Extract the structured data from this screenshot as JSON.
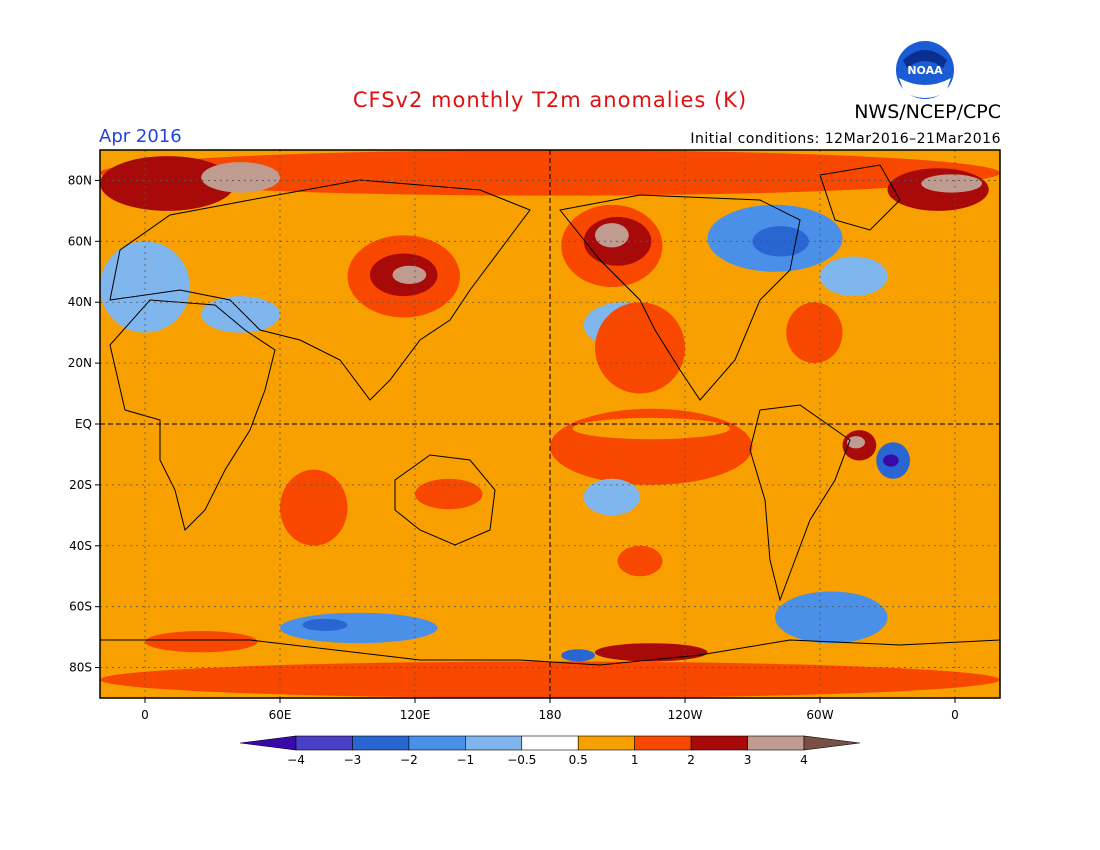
{
  "title": "CFSv2 monthly T2m anomalies (K)",
  "organization": "NWS/NCEP/CPC",
  "logo_text": "NOAA",
  "valid_month": "Apr 2016",
  "initial_conditions": "Initial conditions: 12Mar2016–21Mar2016",
  "colors": {
    "title": "#dd1111",
    "valid_month": "#2244dd",
    "frame": "#000000"
  },
  "chart_data": {
    "type": "heatmap",
    "map_projection": "cylindrical equidistant",
    "lon_range": [
      -20,
      380
    ],
    "lat_range": [
      -90,
      90
    ],
    "grid": true,
    "x_ticks": [
      {
        "lon": 0,
        "label": "0"
      },
      {
        "lon": 60,
        "label": "60E"
      },
      {
        "lon": 120,
        "label": "120E"
      },
      {
        "lon": 180,
        "label": "180"
      },
      {
        "lon": 240,
        "label": "120W"
      },
      {
        "lon": 300,
        "label": "60W"
      },
      {
        "lon": 360,
        "label": "0"
      }
    ],
    "y_ticks": [
      {
        "lat": 80,
        "label": "80N"
      },
      {
        "lat": 60,
        "label": "60N"
      },
      {
        "lat": 40,
        "label": "40N"
      },
      {
        "lat": 20,
        "label": "20N"
      },
      {
        "lat": 0,
        "label": "EQ"
      },
      {
        "lat": -20,
        "label": "20S"
      },
      {
        "lat": -40,
        "label": "40S"
      },
      {
        "lat": -60,
        "label": "60S"
      },
      {
        "lat": -80,
        "label": "80S"
      }
    ],
    "colorbar": {
      "bins": [
        {
          "min": null,
          "max": -4,
          "color": "#3a0aa8"
        },
        {
          "min": -4,
          "max": -3,
          "color": "#4a40c8"
        },
        {
          "min": -3,
          "max": -2,
          "color": "#2a66d2"
        },
        {
          "min": -2,
          "max": -1,
          "color": "#4a90e8"
        },
        {
          "min": -1,
          "max": -0.5,
          "color": "#80b6ee"
        },
        {
          "min": -0.5,
          "max": 0.5,
          "color": "#ffffff"
        },
        {
          "min": 0.5,
          "max": 1,
          "color": "#f8a000"
        },
        {
          "min": 1,
          "max": 2,
          "color": "#f84800"
        },
        {
          "min": 2,
          "max": 3,
          "color": "#a80a0a"
        },
        {
          "min": 3,
          "max": 4,
          "color": "#c09c90"
        },
        {
          "min": 4,
          "max": null,
          "color": "#7a5046"
        }
      ],
      "labels": [
        "−4",
        "−3",
        "−2",
        "−1",
        "−0.5",
        "0.5",
        "1",
        "2",
        "3",
        "4"
      ]
    },
    "anomaly_regions": [
      {
        "lon": [
          -20,
          380
        ],
        "lat": [
          75,
          90
        ],
        "value": 1.5
      },
      {
        "lon": [
          -20,
          40
        ],
        "lat": [
          70,
          88
        ],
        "value": 2.5
      },
      {
        "lon": [
          25,
          60
        ],
        "lat": [
          76,
          86
        ],
        "value": 3.5
      },
      {
        "lon": [
          330,
          375
        ],
        "lat": [
          70,
          84
        ],
        "value": 2.5
      },
      {
        "lon": [
          345,
          372
        ],
        "lat": [
          76,
          82
        ],
        "value": 3.5
      },
      {
        "lon": [
          90,
          140
        ],
        "lat": [
          35,
          62
        ],
        "value": 1.5
      },
      {
        "lon": [
          100,
          130
        ],
        "lat": [
          42,
          56
        ],
        "value": 2.5
      },
      {
        "lon": [
          110,
          125
        ],
        "lat": [
          46,
          52
        ],
        "value": 3.5
      },
      {
        "lon": [
          -20,
          20
        ],
        "lat": [
          30,
          60
        ],
        "value": -1
      },
      {
        "lon": [
          25,
          60
        ],
        "lat": [
          30,
          42
        ],
        "value": -1
      },
      {
        "lon": [
          185,
          230
        ],
        "lat": [
          45,
          72
        ],
        "value": 1.5
      },
      {
        "lon": [
          195,
          225
        ],
        "lat": [
          52,
          68
        ],
        "value": 2.5
      },
      {
        "lon": [
          200,
          215
        ],
        "lat": [
          58,
          66
        ],
        "value": 3.5
      },
      {
        "lon": [
          250,
          310
        ],
        "lat": [
          50,
          72
        ],
        "value": -1.5
      },
      {
        "lon": [
          270,
          295
        ],
        "lat": [
          55,
          65
        ],
        "value": -2.5
      },
      {
        "lon": [
          300,
          330
        ],
        "lat": [
          42,
          55
        ],
        "value": -1
      },
      {
        "lon": [
          285,
          310
        ],
        "lat": [
          20,
          40
        ],
        "value": 1.5
      },
      {
        "lon": [
          195,
          230
        ],
        "lat": [
          25,
          40
        ],
        "value": -1
      },
      {
        "lon": [
          200,
          240
        ],
        "lat": [
          10,
          40
        ],
        "value": 1.5
      },
      {
        "lon": [
          180,
          270
        ],
        "lat": [
          -20,
          5
        ],
        "value": 1.5
      },
      {
        "lon": [
          190,
          260
        ],
        "lat": [
          -5,
          2
        ],
        "value": 0.75
      },
      {
        "lon": [
          310,
          325
        ],
        "lat": [
          -12,
          -2
        ],
        "value": 2.5
      },
      {
        "lon": [
          312,
          320
        ],
        "lat": [
          -8,
          -4
        ],
        "value": 3.5
      },
      {
        "lon": [
          325,
          340
        ],
        "lat": [
          -18,
          -6
        ],
        "value": -2.5
      },
      {
        "lon": [
          328,
          335
        ],
        "lat": [
          -14,
          -10
        ],
        "value": -4.5
      },
      {
        "lon": [
          195,
          220
        ],
        "lat": [
          -30,
          -18
        ],
        "value": -1
      },
      {
        "lon": [
          30,
          100
        ],
        "lat": [
          -20,
          20
        ],
        "value": 0.75
      },
      {
        "lon": [
          110,
          160
        ],
        "lat": [
          -35,
          -15
        ],
        "value": 0.75
      },
      {
        "lon": [
          120,
          150
        ],
        "lat": [
          -28,
          -18
        ],
        "value": 1.5
      },
      {
        "lon": [
          -20,
          10
        ],
        "lat": [
          -45,
          -25
        ],
        "value": 0.75
      },
      {
        "lon": [
          60,
          90
        ],
        "lat": [
          -40,
          -15
        ],
        "value": 1.5
      },
      {
        "lon": [
          200,
          240
        ],
        "lat": [
          -60,
          -38
        ],
        "value": 0.75
      },
      {
        "lon": [
          210,
          230
        ],
        "lat": [
          -50,
          -40
        ],
        "value": 1.5
      },
      {
        "lon": [
          60,
          130
        ],
        "lat": [
          -72,
          -62
        ],
        "value": -1.5
      },
      {
        "lon": [
          70,
          90
        ],
        "lat": [
          -68,
          -64
        ],
        "value": -2.5
      },
      {
        "lon": [
          280,
          330
        ],
        "lat": [
          -72,
          -55
        ],
        "value": -1.5
      },
      {
        "lon": [
          -20,
          380
        ],
        "lat": [
          -90,
          -78
        ],
        "value": 1.5
      },
      {
        "lon": [
          0,
          50
        ],
        "lat": [
          -75,
          -68
        ],
        "value": 1.5
      },
      {
        "lon": [
          200,
          250
        ],
        "lat": [
          -78,
          -72
        ],
        "value": 2.5
      },
      {
        "lon": [
          185,
          200
        ],
        "lat": [
          -78,
          -74
        ],
        "value": -2.5
      }
    ]
  }
}
